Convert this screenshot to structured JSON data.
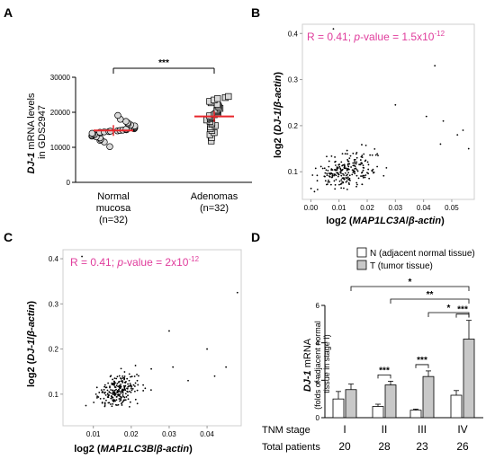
{
  "chart_data": [
    {
      "panel": "A",
      "type": "scatter",
      "ylabel_lines": [
        "DJ-1 mRNA levels",
        "in GDS2947"
      ],
      "yticks": [
        "0",
        "10000",
        "20000",
        "30000"
      ],
      "ylim": [
        0,
        30000
      ],
      "categories": [
        {
          "name": "Normal",
          "name2": "mucosa",
          "n_label": "(n=32)",
          "marker": "circle",
          "mean": 14800,
          "values": [
            10200,
            11500,
            12000,
            12300,
            12700,
            13000,
            13200,
            13400,
            13600,
            13800,
            14000,
            14100,
            14300,
            14400,
            14500,
            14600,
            14700,
            14800,
            14900,
            15000,
            15200,
            15300,
            15500,
            15700,
            15900,
            16100,
            16400,
            16700,
            17000,
            17400,
            18000,
            19100
          ]
        },
        {
          "name": "Adenomas",
          "name2": "",
          "n_label": "(n=32)",
          "marker": "square",
          "mean": 18800,
          "values": [
            11800,
            12800,
            13600,
            14200,
            14800,
            15300,
            15800,
            16200,
            16600,
            17000,
            17400,
            17800,
            18100,
            18400,
            18700,
            19000,
            19300,
            19600,
            19900,
            20200,
            20500,
            20800,
            21100,
            21500,
            21900,
            22300,
            22700,
            23100,
            23500,
            23900,
            24200,
            24500
          ]
        }
      ],
      "significance": "***"
    },
    {
      "panel": "B",
      "type": "scatter",
      "stat_text_plain": "R = 0.41; ",
      "stat_text_p": "p",
      "stat_text_rest": "-value = 1.5x10",
      "stat_exp": "-12",
      "xlabel_parts": [
        "log2 (",
        "MAP1LC3A",
        "/",
        "β-actin",
        ")"
      ],
      "ylabel_parts": [
        "log2 (",
        "DJ-1",
        "/",
        "β-actin",
        ")"
      ],
      "xticks": [
        "0.00",
        "0.01",
        "0.02",
        "0.03",
        "0.04",
        "0.05"
      ],
      "yticks": [
        "0.1",
        "0.2",
        "0.3",
        "0.4"
      ],
      "xlim": [
        -0.003,
        0.058
      ],
      "ylim": [
        0.04,
        0.42
      ],
      "seed": 7,
      "n_points": 230,
      "x_center": 0.013,
      "x_spread": 0.009,
      "y_center": 0.105,
      "y_spread": 0.03,
      "slope": 1.6,
      "outliers": [
        [
          0.008,
          0.41
        ],
        [
          0.044,
          0.33
        ],
        [
          0.041,
          0.22
        ],
        [
          0.047,
          0.21
        ],
        [
          0.052,
          0.18
        ],
        [
          0.056,
          0.15
        ],
        [
          0.054,
          0.19
        ],
        [
          0.03,
          0.245
        ],
        [
          0.046,
          0.16
        ]
      ]
    },
    {
      "panel": "C",
      "type": "scatter",
      "stat_text_plain": "R = 0.41; ",
      "stat_text_p": "p",
      "stat_text_rest": "-value = 2x10",
      "stat_exp": "-12",
      "xlabel_parts": [
        "log2 (",
        "MAP1LC3B",
        "/",
        "β-actin",
        ")"
      ],
      "ylabel_parts": [
        "log2 (",
        "DJ-1",
        "/",
        "β-actin",
        ")"
      ],
      "xticks": [
        "0.01",
        "0.02",
        "0.03",
        "0.04"
      ],
      "yticks": [
        "0.1",
        "0.2",
        "0.3",
        "0.4"
      ],
      "xlim": [
        0.002,
        0.049
      ],
      "ylim": [
        0.03,
        0.42
      ],
      "seed": 19,
      "n_points": 230,
      "x_center": 0.017,
      "x_spread": 0.005,
      "y_center": 0.11,
      "y_spread": 0.03,
      "slope": 2.5,
      "outliers": [
        [
          0.007,
          0.405
        ],
        [
          0.048,
          0.325
        ],
        [
          0.03,
          0.24
        ],
        [
          0.031,
          0.16
        ],
        [
          0.04,
          0.2
        ],
        [
          0.042,
          0.14
        ],
        [
          0.045,
          0.16
        ],
        [
          0.035,
          0.13
        ]
      ]
    },
    {
      "panel": "D",
      "type": "bar",
      "ylabel_lines": [
        "DJ-1 mRNA",
        "(folds of adjacent normal",
        "tissue in stage I)"
      ],
      "yticks": [
        "0",
        "2",
        "4",
        "6"
      ],
      "ylim": [
        0,
        6
      ],
      "legend": [
        {
          "label": "N (adjacent normal tissue)",
          "color": "#ffffff"
        },
        {
          "label": "T (tumor tissue)",
          "color": "#c8c8c8"
        }
      ],
      "row1_label": "TNM stage",
      "row2_label": "Total patients",
      "categories": [
        "I",
        "II",
        "III",
        "IV"
      ],
      "patients": [
        "20",
        "28",
        "23",
        "26"
      ],
      "series": [
        {
          "name": "N",
          "values": [
            1.0,
            0.6,
            0.4,
            1.2
          ],
          "errors": [
            0.4,
            0.12,
            0.06,
            0.25
          ]
        },
        {
          "name": "T",
          "values": [
            1.5,
            1.75,
            2.2,
            4.2
          ],
          "errors": [
            0.3,
            0.2,
            0.3,
            1.0
          ]
        }
      ],
      "within_stars": [
        "***",
        "***",
        "***"
      ],
      "brackets": [
        {
          "from": 0,
          "to": 3,
          "label": "*"
        },
        {
          "from": 1,
          "to": 3,
          "label": "**"
        },
        {
          "from": 2,
          "to": 3,
          "label": "*"
        }
      ]
    }
  ],
  "panel_labels": [
    "A",
    "B",
    "C",
    "D"
  ],
  "colors": {
    "mean_line": "#e8262b",
    "stat_text": "#e03c9c",
    "bar_T": "#c8c8c8",
    "marker_fill": "#d9d9d9"
  }
}
